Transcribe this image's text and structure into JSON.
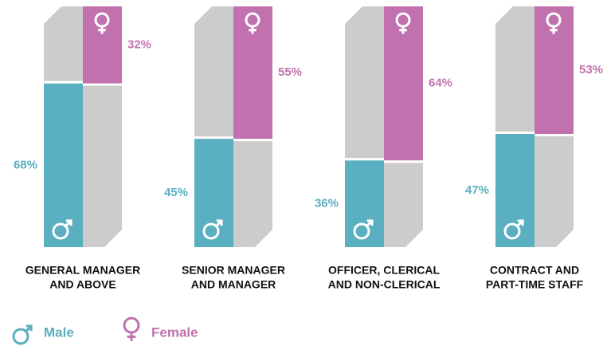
{
  "chart_data": {
    "type": "split-bar",
    "categories": [
      [
        "GENERAL MANAGER",
        "AND ABOVE"
      ],
      [
        "SENIOR MANAGER",
        "AND MANAGER"
      ],
      [
        "OFFICER, CLERICAL",
        "AND NON-CLERICAL"
      ],
      [
        "CONTRACT AND",
        "PART-TIME STAFF"
      ]
    ],
    "series": [
      {
        "name": "Male",
        "color": "#5aafc0",
        "values": [
          68,
          45,
          36,
          47
        ],
        "value_labels": [
          "68%",
          "45%",
          "36%",
          "47%"
        ]
      },
      {
        "name": "Female",
        "color": "#c172ae",
        "values": [
          32,
          55,
          64,
          53
        ],
        "value_labels": [
          "32%",
          "55%",
          "64%",
          "53%"
        ]
      }
    ],
    "background_color": "#cbcccb"
  }
}
